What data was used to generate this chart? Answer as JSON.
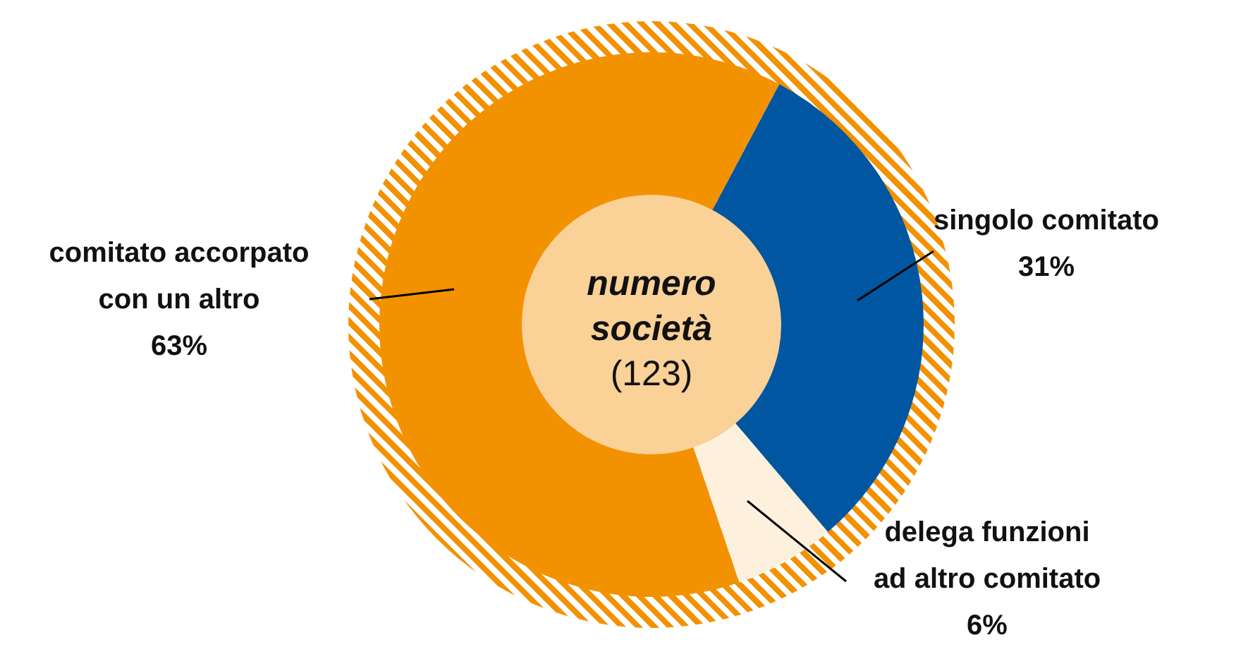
{
  "chart_data": {
    "type": "donut",
    "title": "numero società",
    "subtitle": "(123)",
    "categories": [
      "singolo comitato",
      "delega funzioni ad altro comitato",
      "comitato accorpato con un altro"
    ],
    "values": [
      31,
      6,
      63
    ],
    "value_labels": [
      "31%",
      "6%",
      "63%"
    ],
    "colors": [
      "#0056a1",
      "#fdf1de",
      "#f39200"
    ],
    "legend": false
  }
}
